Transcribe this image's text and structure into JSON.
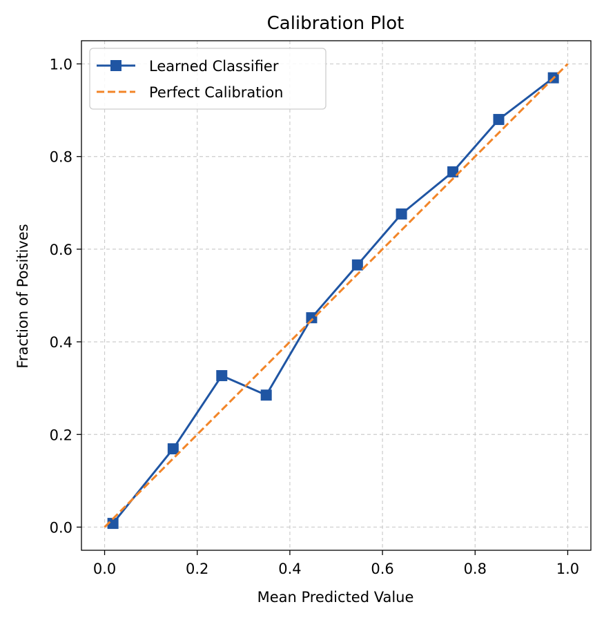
{
  "chart_data": {
    "type": "line",
    "title": "Calibration Plot",
    "xlabel": "Mean Predicted Value",
    "ylabel": "Fraction of Positives",
    "xlim": [
      -0.05,
      1.05
    ],
    "ylim": [
      -0.05,
      1.05
    ],
    "xticks": [
      "0.0",
      "0.2",
      "0.4",
      "0.6",
      "0.8",
      "1.0"
    ],
    "yticks": [
      "0.0",
      "0.2",
      "0.4",
      "0.6",
      "0.8",
      "1.0"
    ],
    "grid": true,
    "legend_position": "top-left",
    "series": [
      {
        "name": "Learned Classifier",
        "color": "#1f55a3",
        "style": "solid",
        "marker": "square",
        "x": [
          0.018,
          0.148,
          0.253,
          0.349,
          0.447,
          0.546,
          0.641,
          0.752,
          0.851,
          0.969
        ],
        "y": [
          0.008,
          0.169,
          0.327,
          0.285,
          0.452,
          0.566,
          0.676,
          0.767,
          0.88,
          0.97
        ]
      },
      {
        "name": "Perfect Calibration",
        "color": "#f28528",
        "style": "dashed",
        "marker": "none",
        "x": [
          0.0,
          1.0
        ],
        "y": [
          0.0,
          1.0
        ]
      }
    ]
  }
}
